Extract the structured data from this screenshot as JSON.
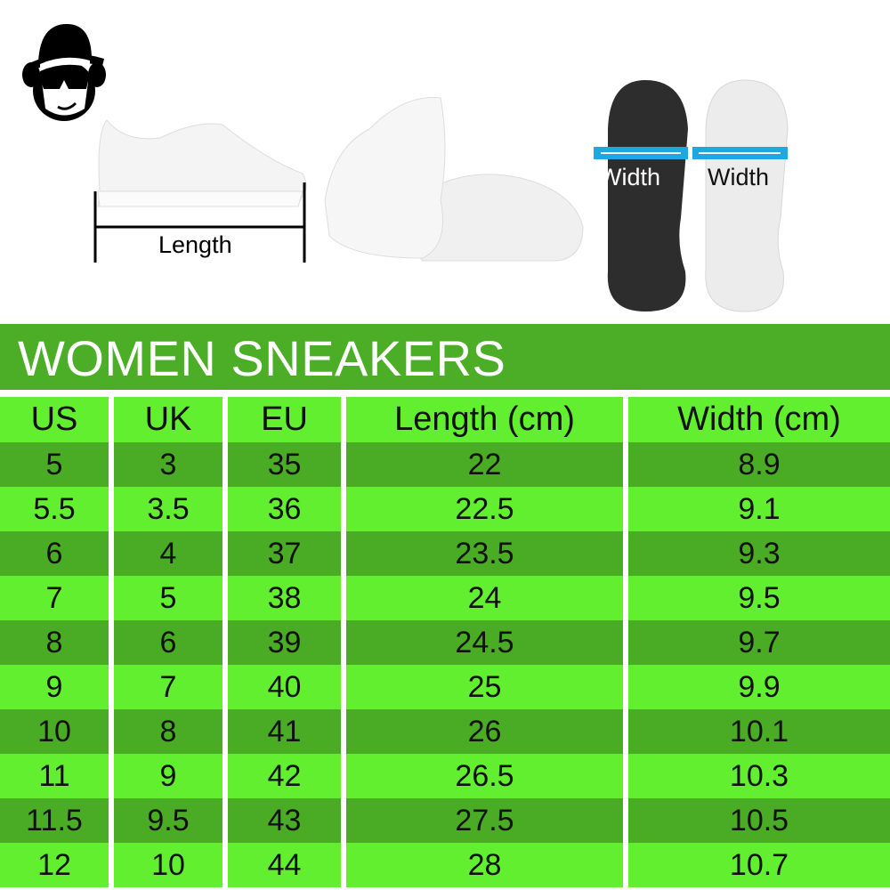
{
  "logo": {
    "name": "monkey-with-hat-and-sunglasses"
  },
  "illustrations": {
    "length_label": "Length",
    "width_label_dark": "Width",
    "width_label_light": "Width"
  },
  "colors": {
    "banner": "#4cae27",
    "row_light": "#62ef2f",
    "row_dark": "#4aab25",
    "width_bar": "#1ea7e0"
  },
  "title": "WOMEN SNEAKERS",
  "table": {
    "headers": [
      "US",
      "UK",
      "EU",
      "Length (cm)",
      "Width (cm)"
    ],
    "rows": [
      [
        "5",
        "3",
        "35",
        "22",
        "8.9"
      ],
      [
        "5.5",
        "3.5",
        "36",
        "22.5",
        "9.1"
      ],
      [
        "6",
        "4",
        "37",
        "23.5",
        "9.3"
      ],
      [
        "7",
        "5",
        "38",
        "24",
        "9.5"
      ],
      [
        "8",
        "6",
        "39",
        "24.5",
        "9.7"
      ],
      [
        "9",
        "7",
        "40",
        "25",
        "9.9"
      ],
      [
        "10",
        "8",
        "41",
        "26",
        "10.1"
      ],
      [
        "11",
        "9",
        "42",
        "26.5",
        "10.3"
      ],
      [
        "11.5",
        "9.5",
        "43",
        "27.5",
        "10.5"
      ],
      [
        "12",
        "10",
        "44",
        "28",
        "10.7"
      ]
    ]
  }
}
